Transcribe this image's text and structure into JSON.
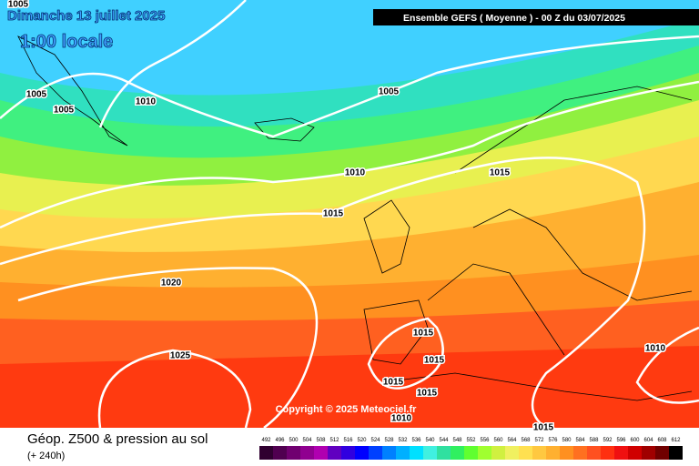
{
  "date_line": "Dimanche 13 juillet 2025",
  "time_line": "1:00 locale",
  "header": "Ensemble GEFS  ( Moyenne )  -  00 Z du 03/07/2025",
  "copyright": "Copyright © 2025 Meteociel.fr",
  "footer_title": "Géop. Z500 & pression au sol",
  "footer_subtitle": "(+ 240h)",
  "isobar_labels": [
    "1005",
    "1005",
    "1005",
    "1010",
    "1005",
    "1010",
    "1015",
    "1015",
    "1020",
    "1025",
    "1015",
    "1015",
    "1015",
    "1015",
    "1010",
    "1010",
    "1015"
  ],
  "colorbar": {
    "ticks": [
      492,
      496,
      500,
      504,
      508,
      512,
      516,
      520,
      524,
      528,
      532,
      536,
      540,
      544,
      548,
      552,
      556,
      560,
      564,
      568,
      572,
      576,
      580,
      584,
      588,
      592,
      596,
      600,
      604,
      608,
      612
    ],
    "colors": [
      "#300030",
      "#500050",
      "#700070",
      "#900090",
      "#b000b0",
      "#6000c0",
      "#3000e0",
      "#0000ff",
      "#0040ff",
      "#0080ff",
      "#00b0ff",
      "#00e0ff",
      "#40f0e0",
      "#30e0a0",
      "#30f060",
      "#60ff30",
      "#a0ff30",
      "#d0f040",
      "#f0f060",
      "#ffe050",
      "#ffc840",
      "#ffb030",
      "#ff9020",
      "#ff7020",
      "#ff5020",
      "#ff3010",
      "#f01010",
      "#d00000",
      "#a00000",
      "#700000",
      "#000000"
    ]
  }
}
